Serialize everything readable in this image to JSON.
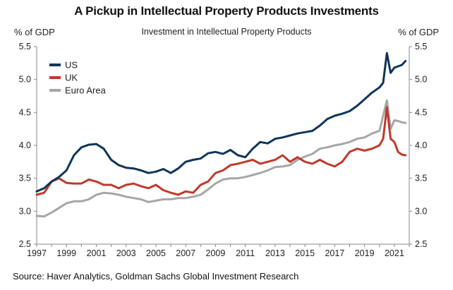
{
  "chart_data": {
    "type": "line",
    "title": "A Pickup in Intellectual Property Products Investments",
    "subtitle": "Investment in Intellectual Property Products",
    "ylabel_left": "% of GDP",
    "ylabel_right": "% of GDP",
    "xlabel": "",
    "source": "Source: Haver Analytics, Goldman Sachs Global Investment Research",
    "ylim": [
      2.5,
      5.5
    ],
    "yticks": [
      "2.5",
      "3.0",
      "3.5",
      "4.0",
      "4.5",
      "5.0",
      "5.5"
    ],
    "xlim": [
      1997,
      2022
    ],
    "xticks": [
      "1997",
      "1999",
      "2001",
      "2003",
      "2005",
      "2007",
      "2009",
      "2011",
      "2013",
      "2015",
      "2017",
      "2019",
      "2021"
    ],
    "legend_position": "top-left",
    "grid": false,
    "series": [
      {
        "name": "US",
        "color": "#0f3558",
        "x": [
          1997.0,
          1997.5,
          1998.0,
          1998.5,
          1999.0,
          1999.5,
          2000.0,
          2000.5,
          2001.0,
          2001.5,
          2002.0,
          2002.5,
          2003.0,
          2003.5,
          2004.0,
          2004.5,
          2005.0,
          2005.5,
          2006.0,
          2006.5,
          2007.0,
          2007.5,
          2008.0,
          2008.5,
          2009.0,
          2009.5,
          2010.0,
          2010.5,
          2011.0,
          2011.5,
          2012.0,
          2012.5,
          2013.0,
          2013.5,
          2014.0,
          2014.5,
          2015.0,
          2015.5,
          2016.0,
          2016.5,
          2017.0,
          2017.5,
          2018.0,
          2018.5,
          2019.0,
          2019.5,
          2020.0,
          2020.25,
          2020.5,
          2020.75,
          2021.0,
          2021.25,
          2021.5,
          2021.75
        ],
        "values": [
          3.3,
          3.35,
          3.45,
          3.52,
          3.62,
          3.85,
          3.97,
          4.01,
          4.02,
          3.95,
          3.78,
          3.7,
          3.66,
          3.65,
          3.62,
          3.58,
          3.6,
          3.64,
          3.58,
          3.65,
          3.75,
          3.78,
          3.8,
          3.88,
          3.9,
          3.87,
          3.93,
          3.85,
          3.82,
          3.95,
          4.05,
          4.03,
          4.1,
          4.12,
          4.15,
          4.18,
          4.2,
          4.22,
          4.3,
          4.4,
          4.45,
          4.48,
          4.52,
          4.6,
          4.7,
          4.8,
          4.88,
          4.95,
          5.4,
          5.1,
          5.18,
          5.2,
          5.22,
          5.28
        ]
      },
      {
        "name": "UK",
        "color": "#c0392b",
        "x": [
          1997.0,
          1997.5,
          1998.0,
          1998.5,
          1999.0,
          1999.5,
          2000.0,
          2000.5,
          2001.0,
          2001.5,
          2002.0,
          2002.5,
          2003.0,
          2003.5,
          2004.0,
          2004.5,
          2005.0,
          2005.5,
          2006.0,
          2006.5,
          2007.0,
          2007.5,
          2008.0,
          2008.5,
          2009.0,
          2009.5,
          2010.0,
          2010.5,
          2011.0,
          2011.5,
          2012.0,
          2012.5,
          2013.0,
          2013.5,
          2014.0,
          2014.5,
          2015.0,
          2015.5,
          2016.0,
          2016.5,
          2017.0,
          2017.5,
          2018.0,
          2018.5,
          2019.0,
          2019.5,
          2020.0,
          2020.25,
          2020.5,
          2020.75,
          2021.0,
          2021.25,
          2021.5,
          2021.75
        ],
        "values": [
          3.25,
          3.28,
          3.45,
          3.5,
          3.43,
          3.42,
          3.42,
          3.48,
          3.45,
          3.4,
          3.4,
          3.35,
          3.4,
          3.42,
          3.38,
          3.35,
          3.4,
          3.32,
          3.28,
          3.25,
          3.3,
          3.28,
          3.4,
          3.45,
          3.58,
          3.62,
          3.7,
          3.72,
          3.75,
          3.78,
          3.72,
          3.75,
          3.78,
          3.85,
          3.75,
          3.82,
          3.75,
          3.72,
          3.78,
          3.72,
          3.68,
          3.75,
          3.9,
          3.95,
          3.92,
          3.95,
          4.0,
          4.1,
          4.58,
          4.1,
          4.05,
          3.9,
          3.86,
          3.85
        ]
      },
      {
        "name": "Euro Area",
        "color": "#a6a6a6",
        "x": [
          1997.0,
          1997.5,
          1998.0,
          1998.5,
          1999.0,
          1999.5,
          2000.0,
          2000.5,
          2001.0,
          2001.5,
          2002.0,
          2002.5,
          2003.0,
          2003.5,
          2004.0,
          2004.5,
          2005.0,
          2005.5,
          2006.0,
          2006.5,
          2007.0,
          2007.5,
          2008.0,
          2008.5,
          2009.0,
          2009.5,
          2010.0,
          2010.5,
          2011.0,
          2011.5,
          2012.0,
          2012.5,
          2013.0,
          2013.5,
          2014.0,
          2014.5,
          2015.0,
          2015.5,
          2016.0,
          2016.5,
          2017.0,
          2017.5,
          2018.0,
          2018.5,
          2019.0,
          2019.5,
          2020.0,
          2020.25,
          2020.5,
          2020.75,
          2021.0,
          2021.25,
          2021.5,
          2021.75
        ],
        "values": [
          2.93,
          2.92,
          2.98,
          3.05,
          3.12,
          3.15,
          3.15,
          3.18,
          3.25,
          3.28,
          3.27,
          3.25,
          3.22,
          3.2,
          3.18,
          3.14,
          3.16,
          3.18,
          3.18,
          3.2,
          3.2,
          3.22,
          3.25,
          3.33,
          3.42,
          3.48,
          3.5,
          3.5,
          3.52,
          3.55,
          3.58,
          3.62,
          3.67,
          3.68,
          3.7,
          3.78,
          3.83,
          3.87,
          3.95,
          3.97,
          4.0,
          4.02,
          4.05,
          4.1,
          4.12,
          4.18,
          4.22,
          4.45,
          4.68,
          4.25,
          4.38,
          4.37,
          4.35,
          4.34
        ]
      }
    ]
  }
}
